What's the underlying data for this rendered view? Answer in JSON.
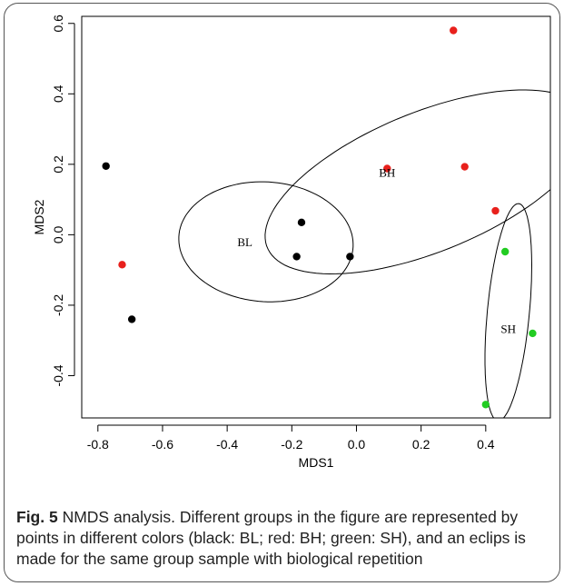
{
  "chart_data": {
    "type": "scatter",
    "xlabel": "MDS1",
    "ylabel": "MDS2",
    "xlim": [
      -0.85,
      0.6
    ],
    "ylim": [
      -0.52,
      0.62
    ],
    "xticks": [
      -0.8,
      -0.6,
      -0.4,
      -0.2,
      0.0,
      0.2,
      0.4
    ],
    "yticks": [
      -0.4,
      -0.2,
      0.0,
      0.2,
      0.4,
      0.6
    ],
    "grid": false,
    "series": [
      {
        "name": "BL",
        "color": "#000000",
        "points": [
          [
            -0.775,
            0.195
          ],
          [
            -0.695,
            -0.24
          ],
          [
            -0.17,
            0.035
          ],
          [
            -0.185,
            -0.062
          ],
          [
            -0.02,
            -0.062
          ]
        ]
      },
      {
        "name": "BH",
        "color": "#e8201c",
        "points": [
          [
            0.3,
            0.58
          ],
          [
            0.095,
            0.188
          ],
          [
            0.335,
            0.193
          ],
          [
            0.43,
            0.068
          ],
          [
            -0.725,
            -0.085
          ]
        ]
      },
      {
        "name": "SH",
        "color": "#22cc22",
        "points": [
          [
            0.46,
            -0.048
          ],
          [
            0.545,
            -0.28
          ],
          [
            0.4,
            -0.482
          ]
        ]
      }
    ],
    "ellipses": [
      {
        "label": "BL",
        "cx": -0.28,
        "cy": -0.02,
        "rx": 0.27,
        "ry": 0.17,
        "angle_deg": -3
      },
      {
        "label": "BH",
        "cx": 0.22,
        "cy": 0.15,
        "rx": 0.53,
        "ry": 0.2,
        "angle_deg": 20
      },
      {
        "label": "SH",
        "cx": 0.47,
        "cy": -0.22,
        "rx": 0.065,
        "ry": 0.31,
        "angle_deg": -6
      }
    ],
    "group_labels": [
      {
        "text": "BL",
        "x": -0.345,
        "y": -0.022
      },
      {
        "text": "BH",
        "x": 0.095,
        "y": 0.175
      },
      {
        "text": "SH",
        "x": 0.47,
        "y": -0.268
      }
    ]
  },
  "caption": {
    "prefix": "Fig. 5",
    "text": " NMDS analysis. Different groups in the figure are represented by points in different colors (black: BL; red: BH; green: SH), and an eclips is made for the same group sample with biological repetition"
  }
}
